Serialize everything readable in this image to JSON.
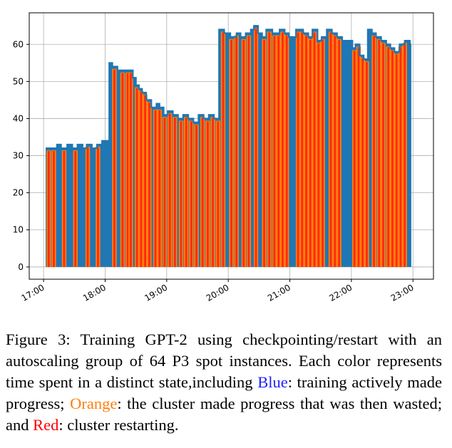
{
  "chart_data": {
    "type": "area",
    "title": "",
    "xlabel": "",
    "ylabel": "",
    "x_ticks": [
      "17:00",
      "18:00",
      "19:00",
      "20:00",
      "21:00",
      "22:00",
      "23:00"
    ],
    "y_ticks": [
      0,
      10,
      20,
      30,
      40,
      50,
      60
    ],
    "xlim": [
      "16:46",
      "23:20"
    ],
    "ylim": [
      -3.3,
      68.5
    ],
    "grid": true,
    "colors": {
      "blue": "#1f77b4",
      "orange": "#ff7f0e",
      "red": "#ff2a0e"
    },
    "series": [
      {
        "name": "Blue",
        "step": true,
        "x": [
          "17:02",
          "17:13",
          "17:17",
          "17:23",
          "17:28",
          "17:33",
          "17:38",
          "17:42",
          "17:47",
          "17:52",
          "17:57",
          "18:04",
          "18:07",
          "18:12",
          "18:27",
          "18:30",
          "18:33",
          "18:36",
          "18:40",
          "18:45",
          "18:50",
          "18:53",
          "18:57",
          "19:01",
          "19:06",
          "19:11",
          "19:16",
          "19:21",
          "19:26",
          "19:31",
          "19:36",
          "19:41",
          "19:46",
          "19:51",
          "19:56",
          "20:02",
          "20:08",
          "20:12",
          "20:17",
          "20:22",
          "20:25",
          "20:29",
          "20:33",
          "20:37",
          "20:43",
          "20:50",
          "20:55",
          "20:59",
          "21:06",
          "21:13",
          "21:18",
          "21:22",
          "21:27",
          "21:31",
          "21:36",
          "21:41",
          "21:46",
          "21:51",
          "21:55",
          "22:01",
          "22:04",
          "22:08",
          "22:12",
          "22:16",
          "22:20",
          "22:24",
          "22:29",
          "22:34",
          "22:38",
          "22:42",
          "22:47",
          "22:52",
          "22:57"
        ],
        "values": [
          32,
          33,
          32,
          33,
          32,
          33,
          32,
          33,
          32,
          33,
          34,
          55,
          54,
          53,
          51,
          49,
          48,
          47,
          45,
          43,
          44,
          43,
          41,
          42,
          41,
          40,
          41,
          40,
          39,
          41,
          40,
          41,
          40,
          64,
          63,
          62,
          63,
          62,
          63,
          64,
          65,
          63,
          62,
          64,
          63,
          64,
          63,
          62,
          64,
          63,
          62,
          64,
          61,
          62,
          64,
          63,
          62,
          61,
          61,
          59,
          60,
          57,
          56,
          64,
          63,
          62,
          61,
          60,
          59,
          58,
          60,
          61,
          60
        ]
      }
    ],
    "interrupted_runs": {
      "description_colors": [
        "orange",
        "red"
      ],
      "x": [
        "17:05",
        "17:10",
        "17:20",
        "17:31",
        "17:43",
        "17:53",
        "18:09",
        "18:17",
        "18:22",
        "18:25",
        "18:31",
        "18:35",
        "18:39",
        "18:43",
        "18:49",
        "18:53",
        "18:58",
        "19:03",
        "19:08",
        "19:14",
        "19:19",
        "19:24",
        "19:29",
        "19:35",
        "19:40",
        "19:45",
        "19:50",
        "19:55",
        "20:03",
        "20:08",
        "20:15",
        "20:20",
        "20:27",
        "20:35",
        "20:40",
        "20:45",
        "20:49",
        "20:53",
        "20:57",
        "21:08",
        "21:12",
        "21:16",
        "21:20",
        "21:24",
        "21:28",
        "21:32",
        "21:40",
        "21:44",
        "21:48",
        "22:03",
        "22:07",
        "22:11",
        "22:15",
        "22:22",
        "22:27",
        "22:31",
        "22:36",
        "22:40",
        "22:44",
        "22:48",
        "22:52"
      ]
    }
  },
  "caption": {
    "prefix": "Figure 3: Training GPT-2 using checkpointing/restart with an autoscaling group of 64 P3 spot instances. Each color represents time spent in a distinct state,including ",
    "blue_word": "Blue",
    "blue_desc": ": training actively made progress; ",
    "orange_word": "Orange",
    "orange_desc": ": the cluster made progress that was then wasted; and ",
    "red_word": "Red",
    "red_desc": ": cluster restarting."
  }
}
